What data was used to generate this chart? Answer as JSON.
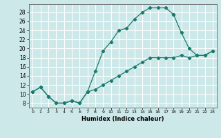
{
  "xlabel": "Humidex (Indice chaleur)",
  "bg_color": "#cce8e8",
  "line_color": "#1a7a6e",
  "grid_color": "#ffffff",
  "xlim": [
    -0.5,
    23.5
  ],
  "ylim": [
    7.0,
    29.8
  ],
  "xticks": [
    0,
    1,
    2,
    3,
    4,
    5,
    6,
    7,
    8,
    9,
    10,
    11,
    12,
    13,
    14,
    15,
    16,
    17,
    18,
    19,
    20,
    21,
    22,
    23
  ],
  "yticks": [
    8,
    10,
    12,
    14,
    16,
    18,
    20,
    22,
    24,
    26,
    28
  ],
  "upper_x": [
    0,
    1,
    2,
    3,
    4,
    5,
    6,
    7,
    8,
    9,
    10,
    11,
    12,
    13,
    14,
    15,
    16,
    17,
    18
  ],
  "upper_y": [
    10.5,
    11.5,
    9.5,
    8.0,
    8.0,
    8.5,
    8.0,
    10.5,
    15.0,
    19.5,
    21.5,
    24.0,
    24.5,
    26.5,
    28.0,
    29.0,
    29.0,
    29.0,
    27.5
  ],
  "lower_x": [
    0,
    1,
    2,
    3,
    4,
    5,
    6,
    7,
    8,
    9,
    10,
    11,
    12,
    13,
    14,
    15,
    16,
    17,
    18,
    19,
    20,
    21,
    22,
    23
  ],
  "lower_y": [
    10.5,
    11.5,
    9.5,
    8.0,
    8.0,
    8.5,
    8.0,
    10.5,
    11.0,
    12.0,
    13.0,
    14.0,
    15.0,
    16.0,
    17.0,
    18.0,
    18.0,
    18.0,
    18.0,
    18.5,
    18.0,
    18.5,
    18.5,
    19.5
  ],
  "right_x": [
    18,
    19,
    20,
    21,
    22,
    23
  ],
  "right_y": [
    27.5,
    23.5,
    20.0,
    18.5,
    18.5,
    19.5
  ]
}
